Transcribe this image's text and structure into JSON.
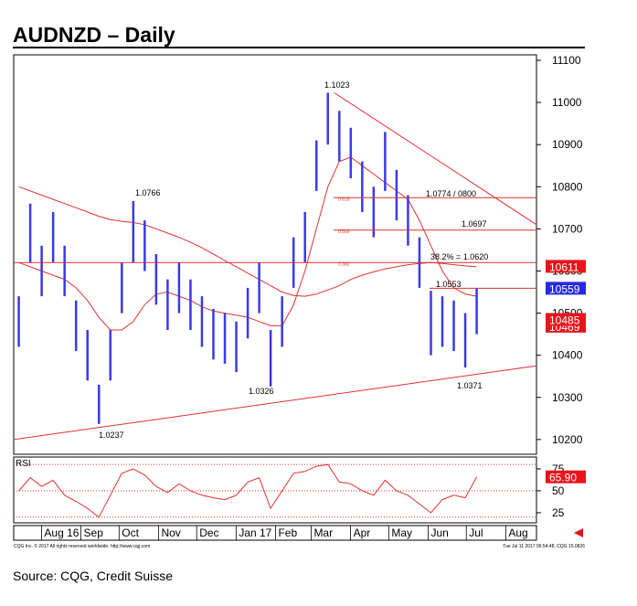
{
  "title": "AUDNZD – Daily",
  "source": "Source: CQG, Credit Suisse",
  "footer_left": "CQG Inc. © 2017 All rights reserved worldwide. http://www.cqg.com",
  "footer_right": "Tue Jul 11 2017 09:54:48, CQG 15.0826",
  "chart_data": [
    {
      "type": "hlbar",
      "color": "#3a3ae6",
      "x": [
        -20,
        -11,
        -2,
        7,
        16,
        25,
        34,
        43,
        52,
        61,
        70,
        79,
        88,
        97,
        106,
        115,
        124,
        133,
        142,
        151,
        160,
        169,
        178,
        187,
        196,
        205,
        214,
        223,
        232,
        241,
        250,
        259,
        268,
        277,
        286,
        295,
        304,
        313,
        322,
        331,
        340
      ],
      "high": [
        10540,
        10760,
        10660,
        10740,
        10660,
        10530,
        10460,
        10330,
        10460,
        10620,
        10766,
        10720,
        10640,
        10580,
        10620,
        10580,
        10540,
        10510,
        10500,
        10480,
        10560,
        10620,
        10460,
        10540,
        10680,
        10740,
        10910,
        11023,
        10980,
        10940,
        10860,
        10800,
        10930,
        10840,
        10780,
        10680,
        10553,
        10540,
        10530,
        10500,
        10559
      ],
      "low": [
        10420,
        10620,
        10540,
        10620,
        10540,
        10410,
        10340,
        10237,
        10340,
        10500,
        10620,
        10600,
        10520,
        10460,
        10500,
        10460,
        10420,
        10390,
        10380,
        10360,
        10440,
        10500,
        10326,
        10420,
        10560,
        10620,
        10790,
        10900,
        10860,
        10820,
        10740,
        10680,
        10790,
        10720,
        10660,
        10560,
        10400,
        10420,
        10410,
        10371,
        10450
      ],
      "overlays": [
        {
          "color": "#e03030",
          "values": [
            10800,
            10790,
            10780,
            10770,
            10760,
            10750,
            10740,
            10730,
            10722,
            10718,
            10715,
            10710,
            10700,
            10690,
            10680,
            10668,
            10655,
            10640,
            10625,
            10610,
            10595,
            10580,
            10565,
            10550,
            10542,
            10540,
            10545,
            10555,
            10565,
            10580,
            10590,
            10598,
            10605,
            10610,
            10615,
            10618,
            10620,
            10618,
            10615,
            10612,
            10610
          ]
        },
        {
          "color": "#e03030",
          "values": [
            10620,
            10610,
            10600,
            10590,
            10580,
            10560,
            10530,
            10490,
            10460,
            10460,
            10480,
            10520,
            10545,
            10550,
            10540,
            10530,
            10515,
            10505,
            10500,
            10495,
            10490,
            10480,
            10470,
            10470,
            10520,
            10600,
            10700,
            10800,
            10860,
            10870,
            10850,
            10830,
            10810,
            10790,
            10770,
            10720,
            10660,
            10600,
            10560,
            10545,
            10540
          ]
        }
      ],
      "trendlines": [
        {
          "x": [
            228,
            387
          ],
          "values": [
            11023,
            10710
          ]
        },
        {
          "x": [
            -24,
            387
          ],
          "values": [
            10200,
            10375
          ]
        }
      ],
      "levels": [
        {
          "price": 10774,
          "ratio": "0.618"
        },
        {
          "price": 10697,
          "ratio": "0.500"
        },
        {
          "price": 10620,
          "ratio": "0.382"
        },
        {
          "price": 10559
        }
      ],
      "annotations": [
        "1.1023",
        "1.0766",
        "1.0237",
        "1.0326",
        "1.0371",
        "1.0553",
        "1.0774 / 0800",
        "1.0697",
        "38.2% = 1.0620"
      ],
      "price_boxes": [
        {
          "value": 10611,
          "color": "#e8141c"
        },
        {
          "value": 10469,
          "color": "#e8141c"
        },
        {
          "value": 10485,
          "color": "#e8141c"
        },
        {
          "value": 10559,
          "color": "#2828e0"
        }
      ],
      "xlim": [
        -24,
        387
      ],
      "xticks": [
        {
          "value": 0,
          "label": "Aug 16"
        },
        {
          "value": 31,
          "label": "Sep"
        },
        {
          "value": 61,
          "label": "Oct"
        },
        {
          "value": 92,
          "label": "Nov"
        },
        {
          "value": 122,
          "label": "Dec"
        },
        {
          "value": 153,
          "label": "Jan 17"
        },
        {
          "value": 184,
          "label": "Feb"
        },
        {
          "value": 212,
          "label": "Mar"
        },
        {
          "value": 243,
          "label": "Apr"
        },
        {
          "value": 273,
          "label": "May"
        },
        {
          "value": 304,
          "label": "Jun"
        },
        {
          "value": 334,
          "label": "Jul"
        },
        {
          "value": 365,
          "label": "Aug"
        }
      ],
      "ylim": [
        10165,
        11113
      ],
      "yticks": [
        10200,
        10300,
        10400,
        10500,
        10600,
        10700,
        10800,
        10900,
        11000,
        11100
      ]
    },
    {
      "type": "line",
      "title": "RSI",
      "color": "#e03030",
      "values": [
        50,
        65,
        55,
        62,
        45,
        38,
        30,
        20,
        45,
        70,
        75,
        68,
        55,
        48,
        58,
        50,
        45,
        42,
        40,
        45,
        60,
        65,
        30,
        50,
        70,
        72,
        78,
        80,
        60,
        58,
        50,
        45,
        62,
        50,
        45,
        35,
        25,
        40,
        45,
        42,
        65.9
      ],
      "value_labels": {
        "40": "65.90"
      },
      "levels": [
        80,
        50,
        20
      ],
      "ylim": [
        13.5,
        88.5
      ],
      "yticks": [
        25,
        50,
        75
      ]
    }
  ]
}
